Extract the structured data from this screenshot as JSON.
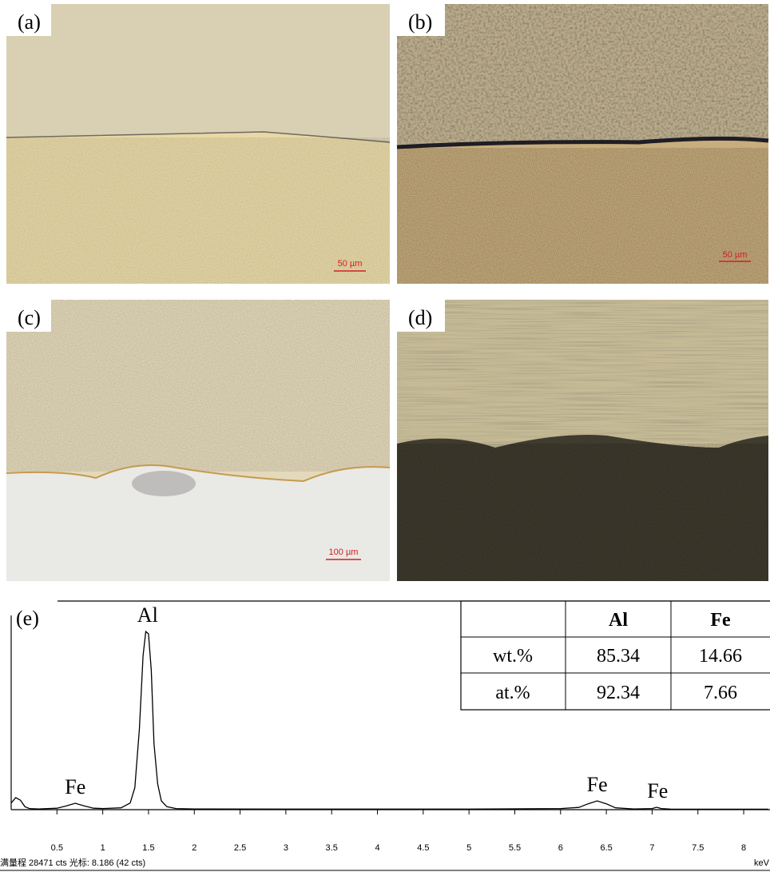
{
  "panels": [
    {
      "label": "(a)",
      "scale_bar": "50 µm"
    },
    {
      "label": "(b)",
      "scale_bar": "50 µm"
    },
    {
      "label": "(c)",
      "scale_bar": "100 µm"
    },
    {
      "label": "(d)"
    }
  ],
  "spectrum": {
    "label": "(e)",
    "type": "line",
    "x": [
      0,
      0.05,
      0.1,
      0.15,
      0.2,
      0.3,
      0.5,
      0.6,
      0.7,
      0.8,
      0.9,
      1.0,
      1.2,
      1.3,
      1.35,
      1.4,
      1.44,
      1.47,
      1.5,
      1.53,
      1.56,
      1.6,
      1.64,
      1.7,
      1.8,
      2.0,
      3.0,
      4.0,
      5.0,
      6.0,
      6.2,
      6.3,
      6.4,
      6.5,
      6.6,
      6.8,
      7.0,
      7.05,
      7.1,
      7.2,
      8.0,
      8.27
    ],
    "values": [
      900,
      1640,
      1300,
      400,
      150,
      100,
      200,
      500,
      870,
      500,
      200,
      150,
      250,
      900,
      3000,
      11000,
      21000,
      24300,
      24000,
      19000,
      9000,
      3500,
      1200,
      400,
      150,
      100,
      80,
      80,
      80,
      150,
      300,
      800,
      1200,
      800,
      250,
      100,
      150,
      330,
      150,
      80,
      60,
      60
    ],
    "xlim": [
      0,
      8.27
    ],
    "ylim": [
      0,
      28471
    ],
    "xticks": [
      0.5,
      1,
      1.5,
      2,
      2.5,
      3,
      3.5,
      4,
      4.5,
      5,
      5.5,
      6,
      6.5,
      7,
      7.5,
      8
    ],
    "x_unit": "keV",
    "peaks": [
      {
        "label": "Al",
        "x": 1.49
      },
      {
        "label": "Fe",
        "x": 0.7
      },
      {
        "label": "Fe",
        "x": 6.4
      },
      {
        "label": "Fe",
        "x": 7.06
      }
    ],
    "footer": "满量程 28471 cts 光标: 8.186  (42 cts)"
  },
  "table": {
    "header": [
      "Al",
      "Fe"
    ],
    "rows": [
      [
        "wt.%",
        "85.34",
        "14.66"
      ],
      [
        "at.%",
        "92.34",
        "7.66"
      ]
    ]
  }
}
